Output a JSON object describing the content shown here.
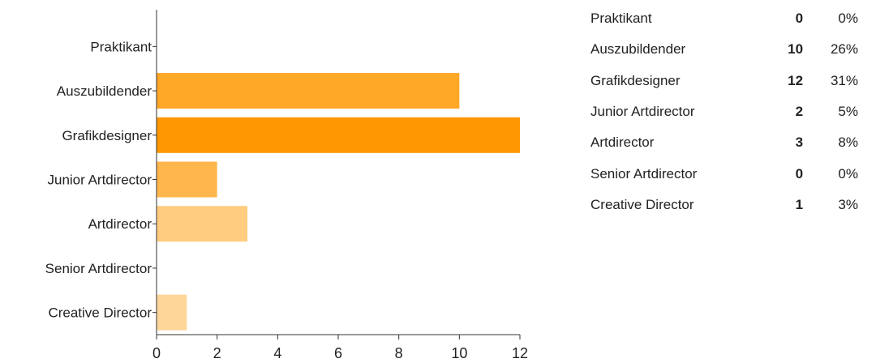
{
  "chart_data": {
    "type": "bar",
    "orientation": "horizontal",
    "categories": [
      "Praktikant",
      "Auszubildender",
      "Grafikdesigner",
      "Junior Artdirector",
      "Artdirector",
      "Senior Artdirector",
      "Creative Director"
    ],
    "values": [
      0,
      10,
      12,
      2,
      3,
      0,
      1
    ],
    "xlim": [
      0,
      12
    ],
    "xticks": [
      "0",
      "2",
      "4",
      "6",
      "8",
      "10",
      "12"
    ],
    "grid": false,
    "bar_colors": [
      "#ffa726",
      "#ffa726",
      "#ff9800",
      "#ffb74d",
      "#ffcc80",
      "#ffcc80",
      "#ffd699"
    ]
  },
  "summary": [
    {
      "label": "Praktikant",
      "count": "0",
      "percent": "0%"
    },
    {
      "label": "Auszubildender",
      "count": "10",
      "percent": "26%"
    },
    {
      "label": "Grafikdesigner",
      "count": "12",
      "percent": "31%"
    },
    {
      "label": "Junior Artdirector",
      "count": "2",
      "percent": "5%"
    },
    {
      "label": "Artdirector",
      "count": "3",
      "percent": "8%"
    },
    {
      "label": "Senior Artdirector",
      "count": "0",
      "percent": "0%"
    },
    {
      "label": "Creative Director",
      "count": "1",
      "percent": "3%"
    }
  ]
}
